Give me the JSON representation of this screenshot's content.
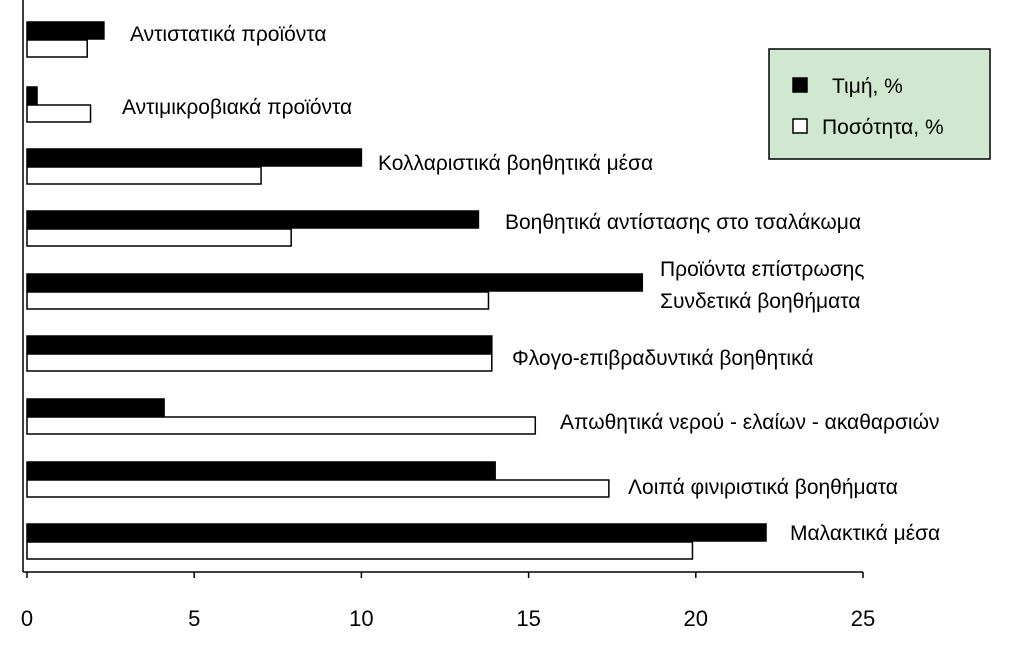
{
  "chart_data": {
    "type": "bar",
    "orientation": "horizontal",
    "categories": [
      "Αντιστατικά προϊόντα",
      "Αντιμικροβιακά προϊόντα",
      "Κολλαριστικά βοηθητικά μέσα",
      "Βοηθητικά αντίστασης στο τσαλάκωμα",
      "Προϊόντα επίστρωσης Συνδετικά βοηθήματα",
      "Φλογο-επιβραδυντικά βοηθητικά",
      "Απωθητικά νερού - ελαίων - ακαθαρσιών",
      "Λοιπά φινιριστικά βοηθήματα",
      "Μαλακτικά μέσα"
    ],
    "category_lines": [
      [
        "Αντιστατικά προϊόντα"
      ],
      [
        "Αντιμικροβιακά προϊόντα"
      ],
      [
        "Κολλαριστικά βοηθητικά μέσα"
      ],
      [
        "Βοηθητικά αντίστασης στο τσαλάκωμα"
      ],
      [
        "Προϊόντα επίστρωσης",
        "Συνδετικά βοηθήματα"
      ],
      [
        "Φλογο-επιβραδυντικά βοηθητικά"
      ],
      [
        "Απωθητικά νερού - ελαίων - ακαθαρσιών"
      ],
      [
        "Λοιπά φινιριστικά βοηθήματα"
      ],
      [
        "Μαλακτικά μέσα"
      ]
    ],
    "series": [
      {
        "name": "Τιμή, %",
        "color": "#000000",
        "fill": "solid",
        "values": [
          2.3,
          0.3,
          10.0,
          13.5,
          18.4,
          13.9,
          4.1,
          14.0,
          22.1
        ]
      },
      {
        "name": "Ποσότητα, %",
        "color": "#ffffff",
        "fill": "outline",
        "values": [
          1.8,
          1.9,
          7.0,
          7.9,
          13.8,
          13.9,
          15.2,
          17.4,
          19.9
        ]
      }
    ],
    "xticks": [
      "0",
      "5",
      "10",
      "15",
      "20",
      "25"
    ],
    "xlim": [
      0,
      25
    ],
    "legend": {
      "position": "top-right",
      "background": "#cfe8cf"
    },
    "title": "",
    "xlabel": "",
    "ylabel": ""
  }
}
